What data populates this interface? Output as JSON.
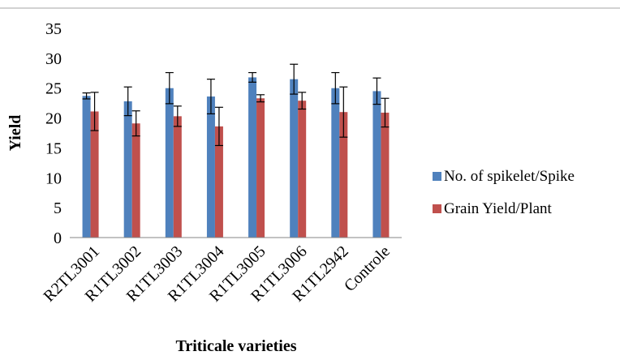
{
  "chart_data": {
    "type": "bar",
    "title": "",
    "xlabel": "Triticale varieties",
    "ylabel": "Yield",
    "ylim": [
      0,
      35
    ],
    "yticks": [
      0,
      5,
      10,
      15,
      20,
      25,
      30,
      35
    ],
    "grid": false,
    "legend_position": "right",
    "categories": [
      "R2TL3001",
      "R1TL3002",
      "R1TL3003",
      "R1TL3004",
      "R1TL3005",
      "R1TL3006",
      "R1TL2942",
      "Controle"
    ],
    "series": [
      {
        "name": "No. of spikelet/Spike",
        "color": "#4F81BD",
        "values": [
          23.7,
          22.8,
          25.0,
          23.6,
          26.8,
          26.5,
          25.0,
          24.5
        ],
        "errors": [
          0.5,
          2.4,
          2.6,
          2.9,
          0.8,
          2.5,
          2.6,
          2.2
        ]
      },
      {
        "name": "Grain Yield/Plant",
        "color": "#C0504D",
        "values": [
          21.1,
          19.1,
          20.3,
          18.6,
          23.3,
          22.9,
          21.0,
          20.9
        ],
        "errors": [
          3.2,
          2.1,
          1.7,
          3.2,
          0.6,
          1.4,
          4.2,
          2.4
        ]
      }
    ]
  }
}
